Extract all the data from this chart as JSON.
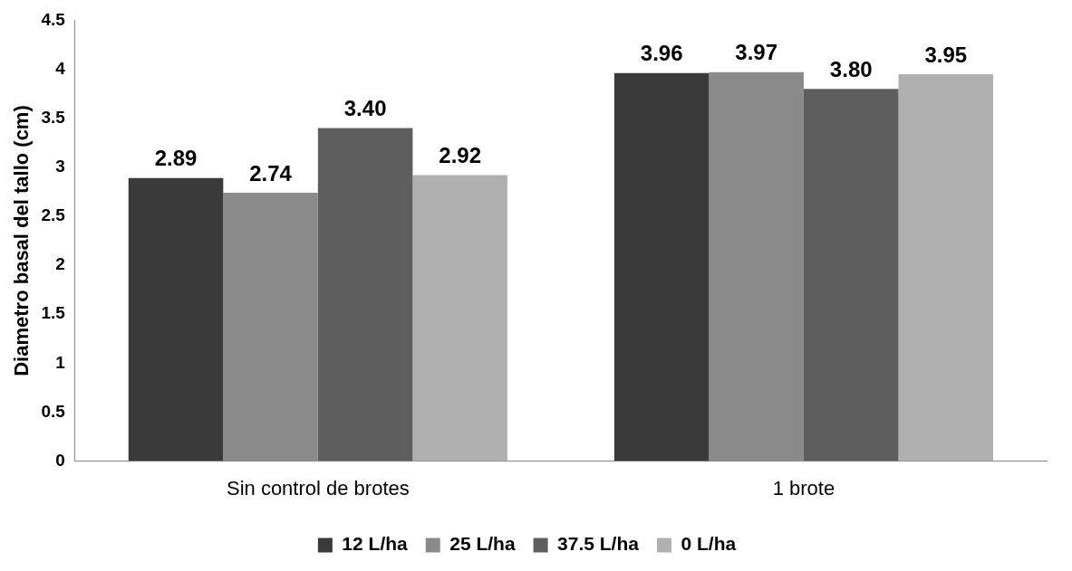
{
  "chart_data": {
    "type": "bar",
    "ylabel": "Diametro basal del tallo (cm)",
    "categories": [
      "Sin control de brotes",
      "1 brote"
    ],
    "series": [
      {
        "name": "12 L/ha",
        "color": "#3a3a3a",
        "values": [
          2.89,
          3.96
        ],
        "value_labels": [
          "2.89",
          "3.96"
        ]
      },
      {
        "name": "25 L/ha",
        "color": "#8a8a8a",
        "values": [
          2.74,
          3.97
        ],
        "value_labels": [
          "2.74",
          "3.97"
        ]
      },
      {
        "name": "37.5 L/ha",
        "color": "#5e5e5e",
        "values": [
          3.4,
          3.8
        ],
        "value_labels": [
          "3.40",
          "3.80"
        ]
      },
      {
        "name": "0 L/ha",
        "color": "#b0b0b0",
        "values": [
          2.92,
          3.95
        ],
        "value_labels": [
          "2.92",
          "3.95"
        ]
      }
    ],
    "ylim": [
      0,
      4.5
    ],
    "yticks": [
      0,
      0.5,
      1,
      1.5,
      2,
      2.5,
      3,
      3.5,
      4,
      4.5
    ],
    "grid": false,
    "legend": "bottom"
  }
}
